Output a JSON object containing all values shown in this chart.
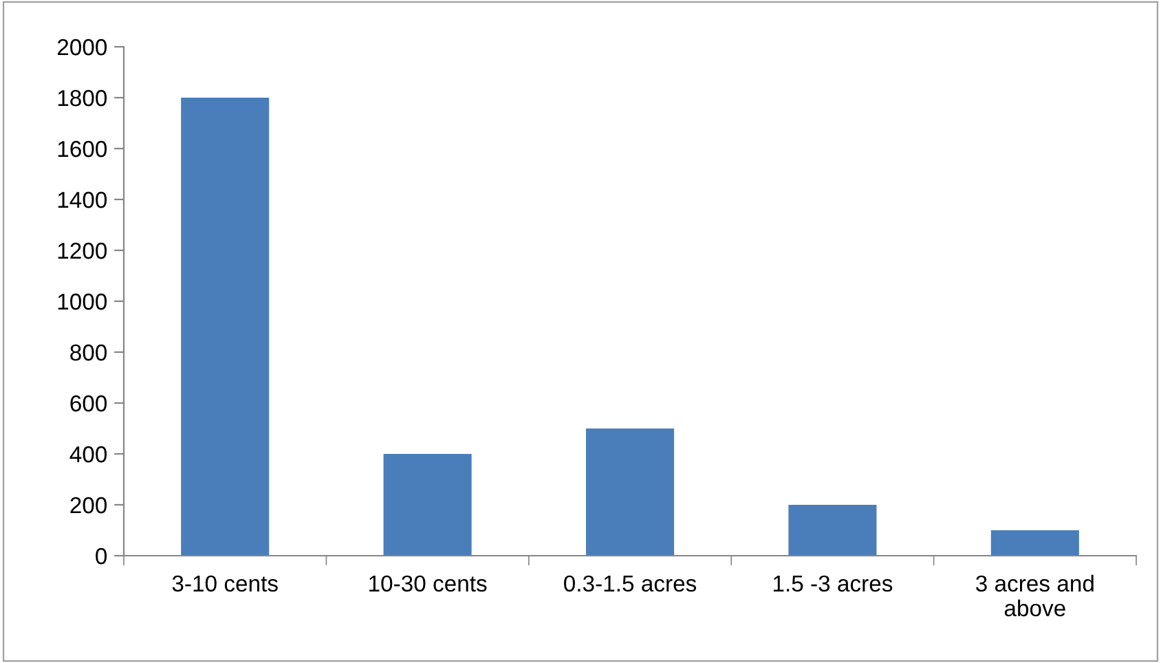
{
  "chart_data": {
    "type": "bar",
    "categories": [
      "3-10 cents",
      "10-30 cents",
      "0.3-1.5 acres",
      "1.5 -3 acres",
      "3 acres and\nabove"
    ],
    "values": [
      1800,
      400,
      500,
      200,
      100
    ],
    "color": "#4a7ebb",
    "ylim": [
      0,
      2000
    ],
    "yticks": [
      0,
      200,
      400,
      600,
      800,
      1000,
      1200,
      1400,
      1600,
      1800,
      2000
    ],
    "grid": false,
    "legend": false
  }
}
